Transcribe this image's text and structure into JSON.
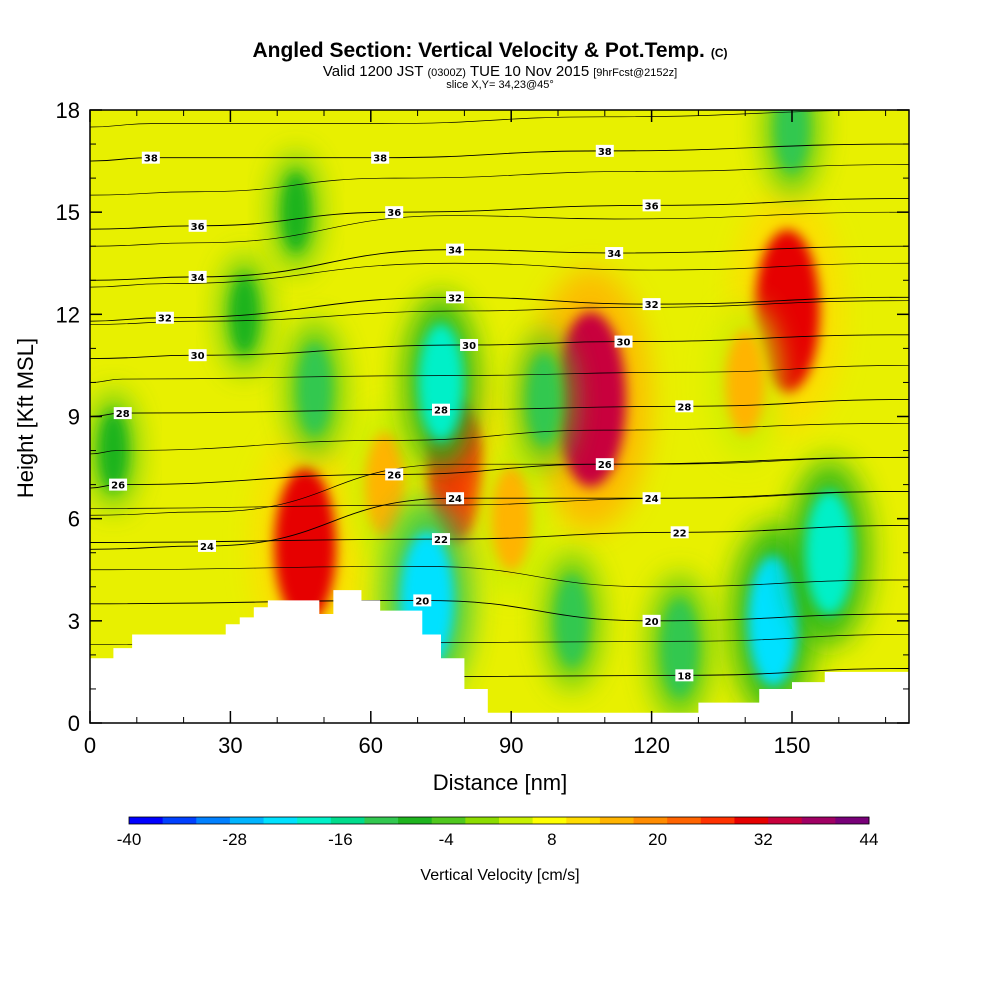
{
  "chart_data": {
    "type": "heatmap",
    "title": "Angled Section: Vertical Velocity & Pot.Temp.",
    "title_suffix": "(C)",
    "subtitle": {
      "part1": "Valid 1200 JST",
      "part2": "(0300Z)",
      "part3": "TUE 10 Nov 2015",
      "part4": "[9hrFcst@2152z]"
    },
    "slice_label": "slice X,Y= 34,23@45°",
    "xlabel": "Distance [nm]",
    "ylabel": "Height [Kft MSL]",
    "xlim": [
      0,
      175
    ],
    "ylim": [
      0,
      18
    ],
    "xticks": [
      0,
      30,
      60,
      90,
      120,
      150
    ],
    "yticks": [
      0,
      3,
      6,
      9,
      12,
      15,
      18
    ],
    "colorbar": {
      "label": "Vertical Velocity [cm/s]",
      "tick_labels": [
        "-40",
        "-28",
        "-16",
        "-4",
        "8",
        "20",
        "32",
        "44"
      ],
      "range": [
        -40,
        44
      ],
      "colors": [
        "#0000ff",
        "#0040ff",
        "#0080ff",
        "#00b4ff",
        "#00e1ff",
        "#00f0c8",
        "#00dc8c",
        "#32c850",
        "#1eb41e",
        "#50c81e",
        "#8cdc00",
        "#c8f000",
        "#ffff00",
        "#ffdc00",
        "#ffb400",
        "#ff8c00",
        "#ff6400",
        "#ff3200",
        "#e60000",
        "#c8003c",
        "#a00064",
        "#780078"
      ]
    },
    "terrain_profile": [
      [
        0,
        1.9
      ],
      [
        5,
        1.9
      ],
      [
        5,
        2.2
      ],
      [
        9,
        2.2
      ],
      [
        9,
        2.6
      ],
      [
        29,
        2.6
      ],
      [
        29,
        2.9
      ],
      [
        32,
        2.9
      ],
      [
        32,
        3.1
      ],
      [
        35,
        3.1
      ],
      [
        35,
        3.4
      ],
      [
        38,
        3.4
      ],
      [
        38,
        3.6
      ],
      [
        49,
        3.6
      ],
      [
        49,
        3.2
      ],
      [
        52,
        3.2
      ],
      [
        52,
        3.9
      ],
      [
        58,
        3.9
      ],
      [
        58,
        3.6
      ],
      [
        62,
        3.6
      ],
      [
        62,
        3.3
      ],
      [
        71,
        3.3
      ],
      [
        71,
        2.6
      ],
      [
        75,
        2.6
      ],
      [
        75,
        1.9
      ],
      [
        80,
        1.9
      ],
      [
        80,
        1.0
      ],
      [
        85,
        1.0
      ],
      [
        85,
        0.3
      ],
      [
        93,
        0.3
      ],
      [
        93,
        0.3
      ],
      [
        130,
        0.3
      ],
      [
        130,
        0.6
      ],
      [
        143,
        0.6
      ],
      [
        143,
        1.0
      ],
      [
        150,
        1.0
      ],
      [
        150,
        1.2
      ],
      [
        157,
        1.2
      ],
      [
        157,
        1.5
      ],
      [
        175,
        1.5
      ]
    ],
    "pot_temp_contours": [
      {
        "label": "18",
        "label_pos": [
          127,
          1.4
        ]
      },
      {
        "label": "20",
        "label_pos": [
          71,
          3.6
        ]
      },
      {
        "label": "20",
        "label_pos": [
          120,
          3.0
        ]
      },
      {
        "label": "22",
        "label_pos": [
          75,
          5.4
        ]
      },
      {
        "label": "22",
        "label_pos": [
          126,
          5.6
        ]
      },
      {
        "label": "24",
        "label_pos": [
          25,
          5.2
        ]
      },
      {
        "label": "24",
        "label_pos": [
          78,
          6.6
        ]
      },
      {
        "label": "24",
        "label_pos": [
          120,
          6.6
        ]
      },
      {
        "label": "26",
        "label_pos": [
          6,
          7.0
        ]
      },
      {
        "label": "26",
        "label_pos": [
          65,
          7.3
        ]
      },
      {
        "label": "26",
        "label_pos": [
          110,
          7.6
        ]
      },
      {
        "label": "28",
        "label_pos": [
          7,
          9.1
        ]
      },
      {
        "label": "28",
        "label_pos": [
          75,
          9.2
        ]
      },
      {
        "label": "28",
        "label_pos": [
          127,
          9.3
        ]
      },
      {
        "label": "30",
        "label_pos": [
          23,
          10.8
        ]
      },
      {
        "label": "30",
        "label_pos": [
          81,
          11.1
        ]
      },
      {
        "label": "30",
        "label_pos": [
          114,
          11.2
        ]
      },
      {
        "label": "32",
        "label_pos": [
          16,
          11.9
        ]
      },
      {
        "label": "32",
        "label_pos": [
          78,
          12.5
        ]
      },
      {
        "label": "32",
        "label_pos": [
          120,
          12.3
        ]
      },
      {
        "label": "34",
        "label_pos": [
          23,
          13.1
        ]
      },
      {
        "label": "34",
        "label_pos": [
          78,
          13.9
        ]
      },
      {
        "label": "34",
        "label_pos": [
          112,
          13.8
        ]
      },
      {
        "label": "36",
        "label_pos": [
          23,
          14.6
        ]
      },
      {
        "label": "36",
        "label_pos": [
          65,
          15.0
        ]
      },
      {
        "label": "36",
        "label_pos": [
          120,
          15.2
        ]
      },
      {
        "label": "38",
        "label_pos": [
          13,
          16.6
        ]
      },
      {
        "label": "38",
        "label_pos": [
          62,
          16.6
        ]
      },
      {
        "label": "38",
        "label_pos": [
          110,
          16.8
        ]
      }
    ],
    "velocity_features": [
      {
        "x": 46,
        "y": 5.2,
        "value": 30
      },
      {
        "x": 78,
        "y": 7.4,
        "value": 26
      },
      {
        "x": 107,
        "y": 9.5,
        "value": 36
      },
      {
        "x": 149,
        "y": 12.1,
        "value": 32
      },
      {
        "x": 90,
        "y": 6.0,
        "value": 14
      },
      {
        "x": 63,
        "y": 7.0,
        "value": 14
      },
      {
        "x": 140,
        "y": 10.0,
        "value": 14
      },
      {
        "x": 72,
        "y": 3.6,
        "value": -24
      },
      {
        "x": 75,
        "y": 10.0,
        "value": -18
      },
      {
        "x": 146,
        "y": 3.0,
        "value": -22
      },
      {
        "x": 158,
        "y": 5.0,
        "value": -20
      },
      {
        "x": 103,
        "y": 3.0,
        "value": -10
      },
      {
        "x": 48,
        "y": 9.8,
        "value": -10
      },
      {
        "x": 97,
        "y": 9.5,
        "value": -10
      },
      {
        "x": 33,
        "y": 12.0,
        "value": -6
      },
      {
        "x": 44,
        "y": 15.0,
        "value": -6
      },
      {
        "x": 126,
        "y": 2.2,
        "value": -12
      },
      {
        "x": 5,
        "y": 8.0,
        "value": -6
      },
      {
        "x": 150,
        "y": 17.5,
        "value": -10
      }
    ]
  }
}
